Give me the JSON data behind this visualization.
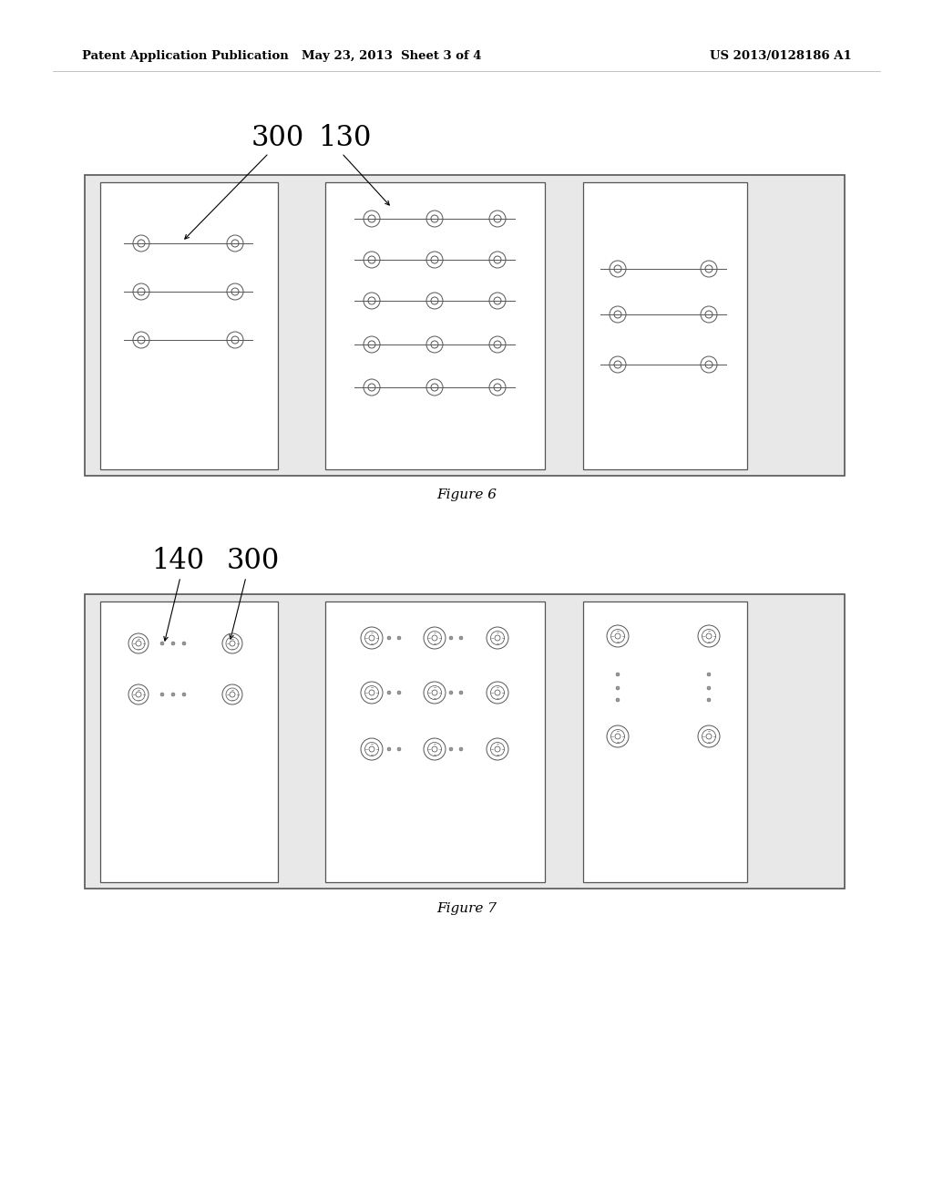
{
  "bg_color": "#ffffff",
  "header_left": "Patent Application Publication",
  "header_mid": "May 23, 2013  Sheet 3 of 4",
  "header_right": "US 2013/0128186 A1",
  "fig6_caption": "Figure 6",
  "fig7_caption": "Figure 7",
  "label_300_fig6": "300",
  "label_130_fig6": "130",
  "label_140_fig7": "140",
  "label_300_fig7": "300",
  "lc": "#555555",
  "tc": "#000000",
  "outer_fill": "#e8e8e8",
  "panel_fill": "#ffffff"
}
